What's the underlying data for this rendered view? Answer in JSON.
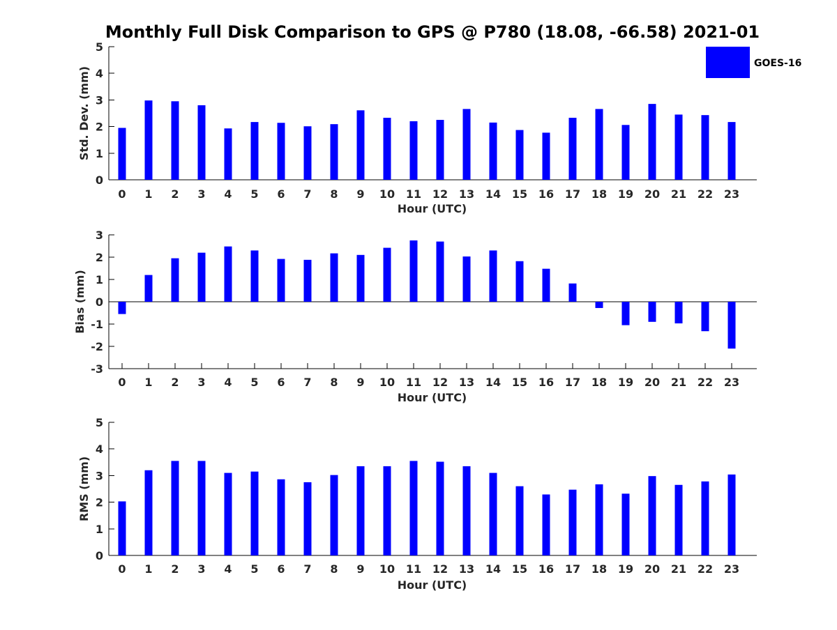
{
  "chart_data": {
    "type": "bar",
    "title": "Monthly Full Disk Comparison to GPS @ P780 (18.08, -66.58) 2021-01",
    "legend": {
      "placement": "top-right",
      "entries": [
        "GOES-16"
      ]
    },
    "colors": {
      "bar": "#0000ff",
      "axis": "#000000",
      "text": "#262626",
      "background": "#ffffff"
    },
    "grid": false,
    "categories": [
      "0",
      "1",
      "2",
      "3",
      "4",
      "5",
      "6",
      "7",
      "8",
      "9",
      "10",
      "11",
      "12",
      "13",
      "14",
      "15",
      "16",
      "17",
      "18",
      "19",
      "20",
      "21",
      "22",
      "23"
    ],
    "panels": [
      {
        "xlabel": "Hour (UTC)",
        "ylabel": "Std. Dev. (mm)",
        "ylim": [
          0,
          5
        ],
        "yticks": [
          0,
          1,
          2,
          3,
          4,
          5
        ],
        "series": [
          {
            "name": "GOES-16",
            "values": [
              1.95,
              2.98,
              2.95,
              2.8,
              1.93,
              2.17,
              2.14,
              2.01,
              2.09,
              2.61,
              2.33,
              2.2,
              2.25,
              2.66,
              2.15,
              1.87,
              1.77,
              2.33,
              2.66,
              2.06,
              2.85,
              2.45,
              2.43,
              2.17
            ]
          }
        ]
      },
      {
        "xlabel": "Hour (UTC)",
        "ylabel": "Bias (mm)",
        "ylim": [
          -3,
          3
        ],
        "yticks": [
          -3,
          -2,
          -1,
          0,
          1,
          2,
          3
        ],
        "series": [
          {
            "name": "GOES-16",
            "values": [
              -0.55,
              1.2,
              1.95,
              2.2,
              2.48,
              2.3,
              1.92,
              1.88,
              2.17,
              2.1,
              2.42,
              2.75,
              2.7,
              2.03,
              2.3,
              1.82,
              1.48,
              0.82,
              -0.28,
              -1.05,
              -0.9,
              -0.97,
              -1.32,
              -2.1
            ]
          }
        ]
      },
      {
        "xlabel": "Hour (UTC)",
        "ylabel": "RMS (mm)",
        "ylim": [
          0,
          5
        ],
        "yticks": [
          0,
          1,
          2,
          3,
          4,
          5
        ],
        "series": [
          {
            "name": "GOES-16",
            "values": [
              2.03,
              3.2,
              3.55,
              3.55,
              3.1,
              3.15,
              2.86,
              2.75,
              3.02,
              3.35,
              3.35,
              3.55,
              3.52,
              3.35,
              3.1,
              2.6,
              2.29,
              2.47,
              2.67,
              2.32,
              2.98,
              2.65,
              2.78,
              3.04
            ]
          }
        ]
      }
    ]
  }
}
